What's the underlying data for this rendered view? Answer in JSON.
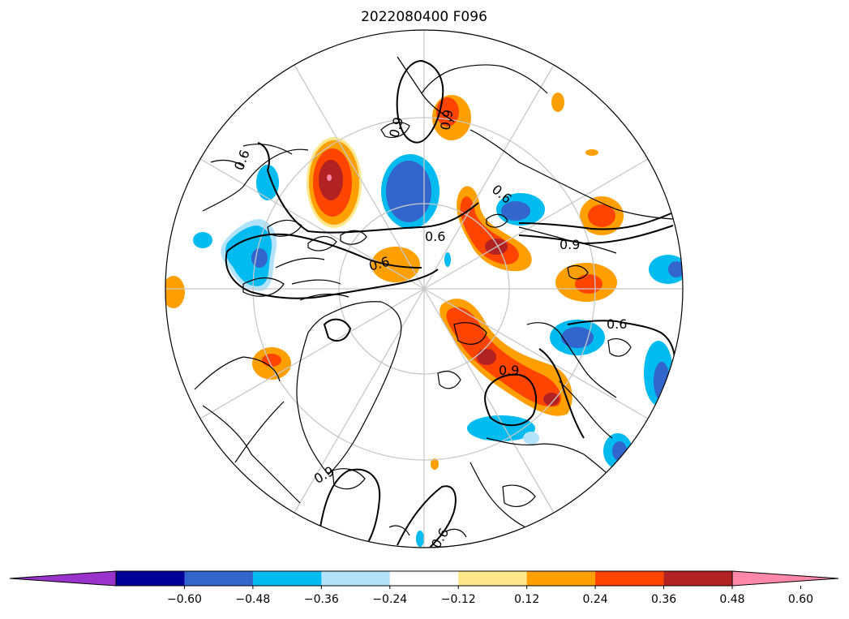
{
  "title": "2022080400 F096",
  "contour_labels": {
    "l1": "0.9",
    "l2": "0.6",
    "l3": "0.6",
    "l4": "0.9",
    "l5": "0.6",
    "l6": "0.9",
    "l7": "0.6",
    "l8": "0.9",
    "l9": "0.6",
    "l10": "0.9",
    "l11": "0.6"
  },
  "colorbar": {
    "colors": [
      "#9933cc",
      "#000099",
      "#3366cc",
      "#00bbf0",
      "#b3e3fb",
      "#ffffff",
      "#ffe88c",
      "#ff9f00",
      "#ff4400",
      "#b22222",
      "#ff88aa"
    ],
    "ticks": [
      "−0.60",
      "−0.48",
      "−0.36",
      "−0.24",
      "−0.12",
      "0.12",
      "0.24",
      "0.36",
      "0.48",
      "0.60"
    ]
  },
  "colors": {
    "grid": "#c8c8c8",
    "coast": "#000000",
    "contour": "#000000"
  }
}
